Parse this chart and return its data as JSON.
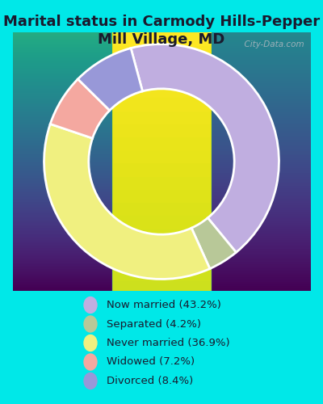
{
  "title": "Marital status in Carmody Hills-Pepper\nMill Village, MD",
  "title_fontsize": 13,
  "background_color": "#00e8e8",
  "chart_bg_gradient_top": "#f0f5ee",
  "chart_bg_gradient_bottom": "#dceee0",
  "slices": [
    43.2,
    4.2,
    36.9,
    7.2,
    8.4
  ],
  "colors": [
    "#c0aee0",
    "#b8c898",
    "#f0f080",
    "#f4a8a0",
    "#9898d8"
  ],
  "labels": [
    "Now married (43.2%)",
    "Separated (4.2%)",
    "Never married (36.9%)",
    "Widowed (7.2%)",
    "Divorced (8.4%)"
  ],
  "legend_colors": [
    "#c0aee0",
    "#b8c898",
    "#f0f080",
    "#f4a8a0",
    "#9898d8"
  ],
  "donut_width": 0.38,
  "startangle": 105.12,
  "watermark": "  City-Data.com"
}
